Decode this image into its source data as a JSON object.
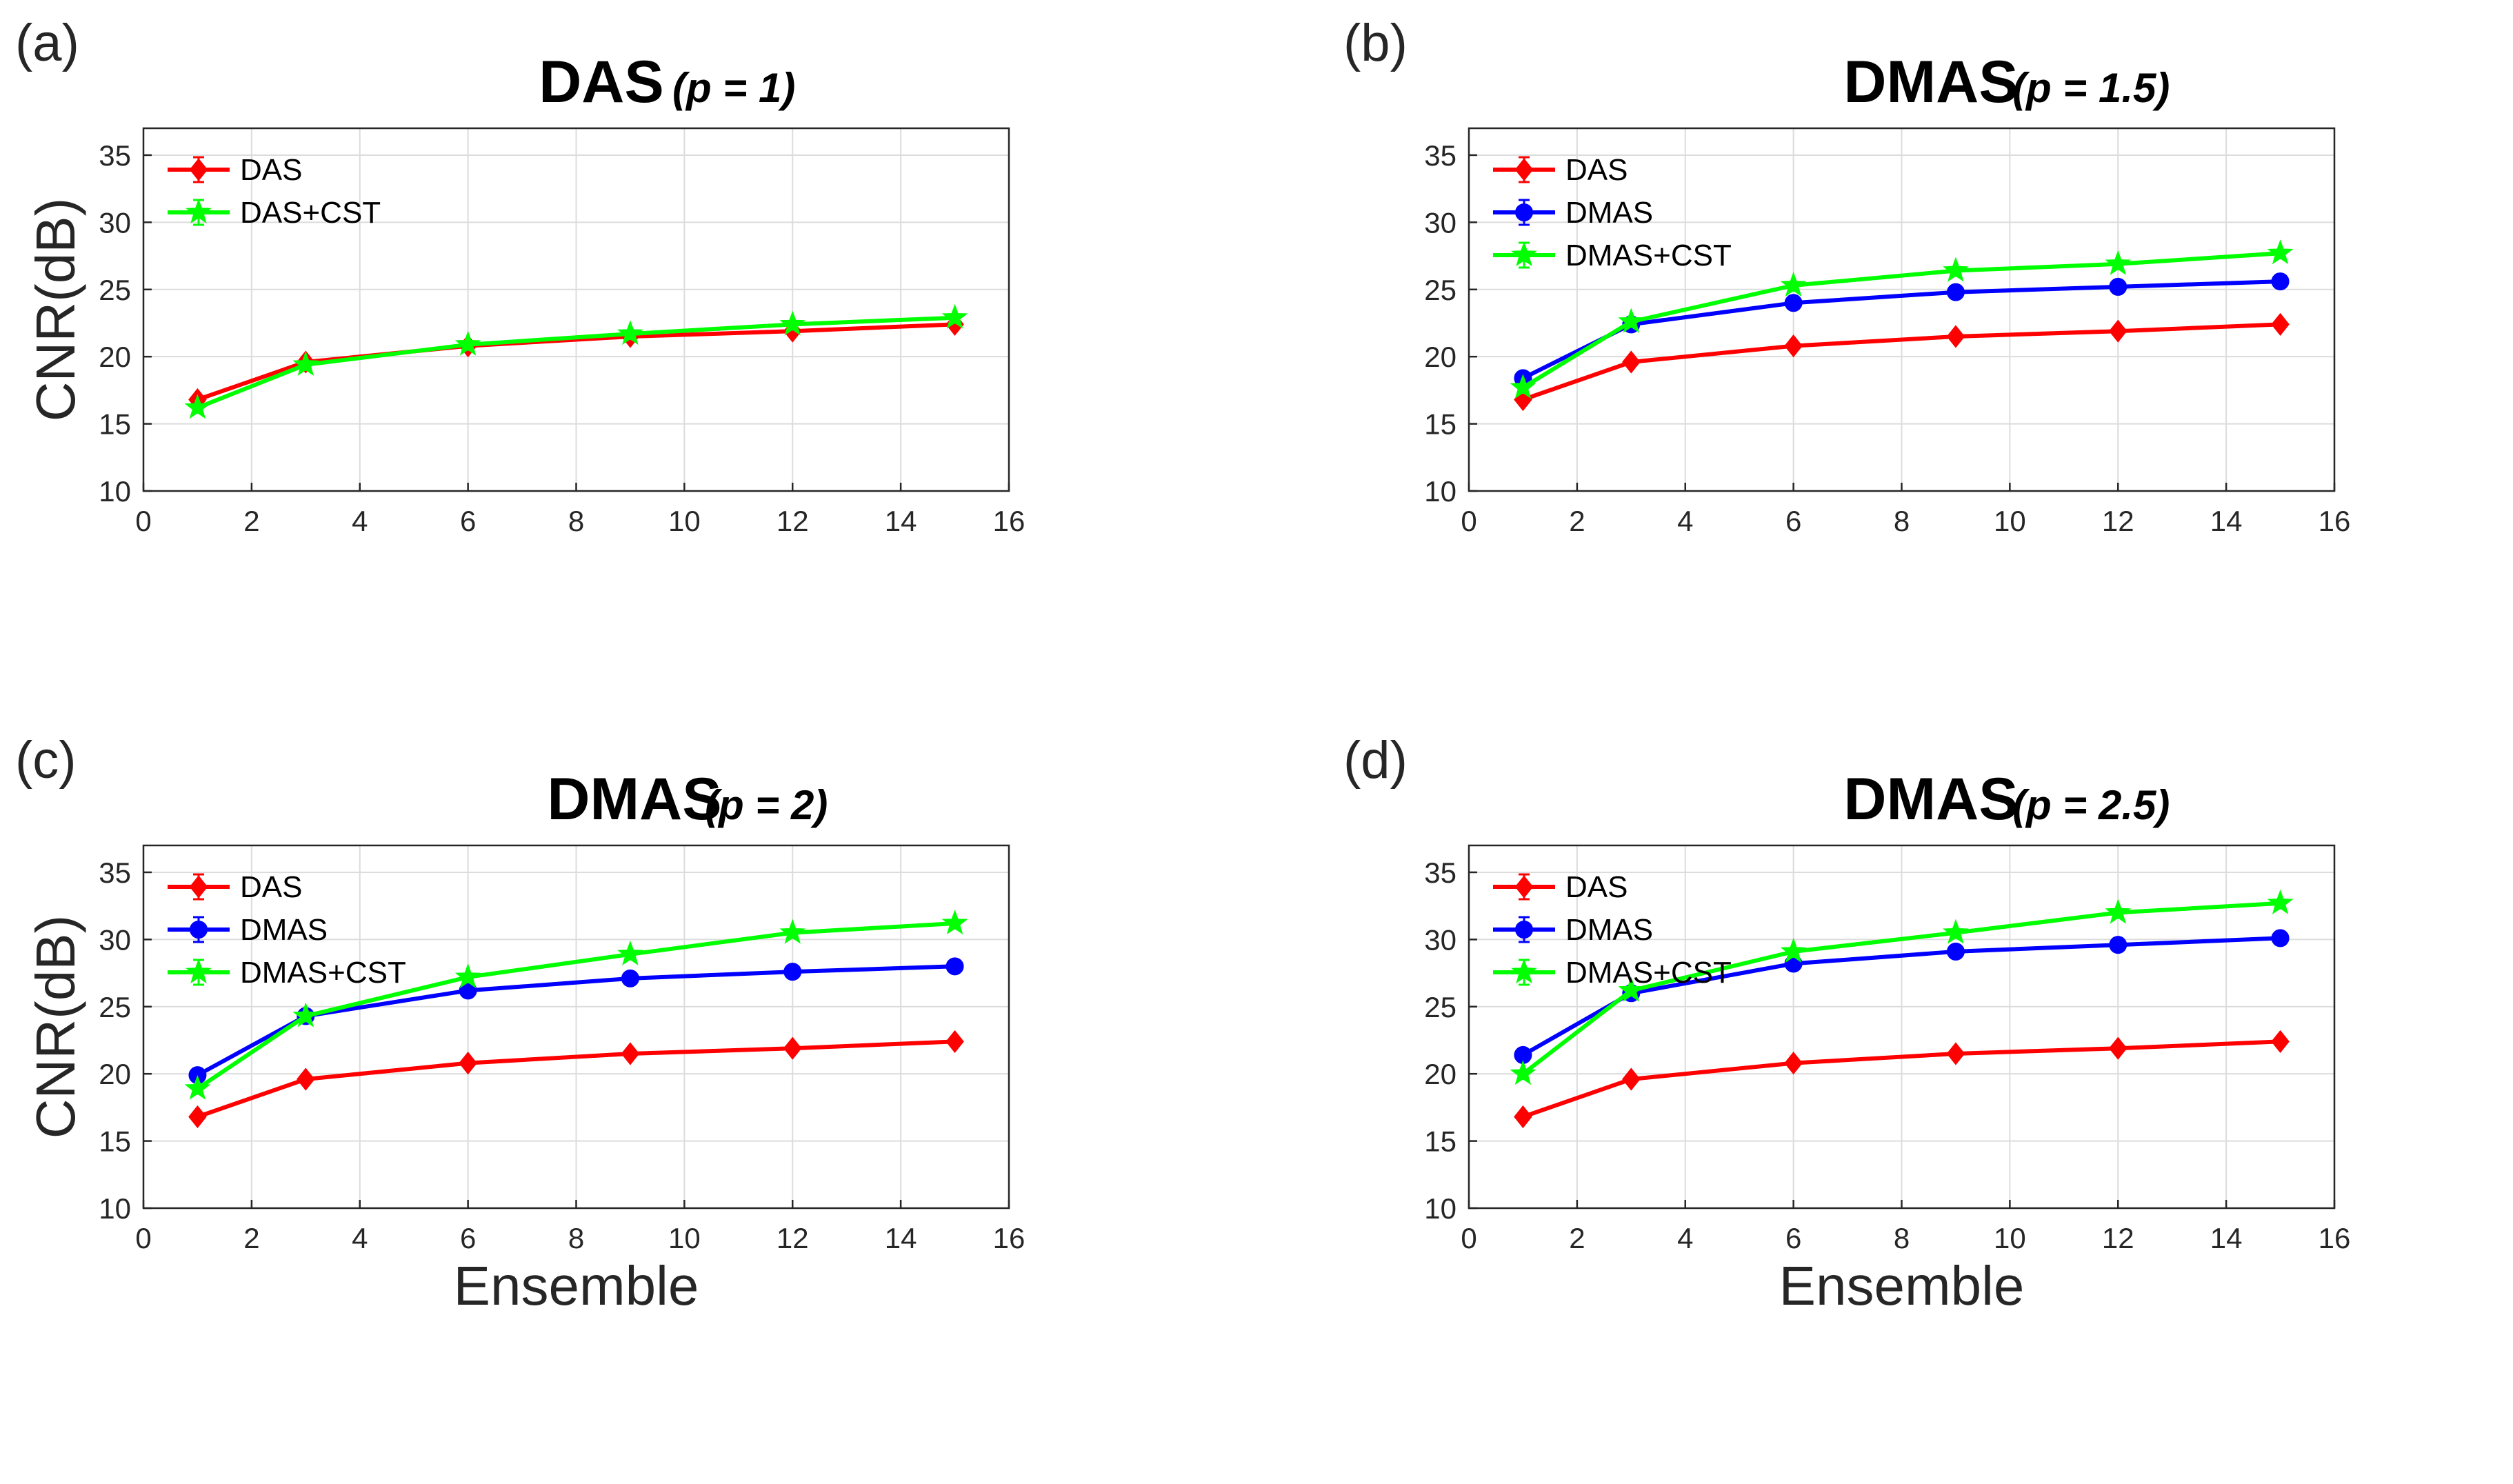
{
  "figure": {
    "x_label": "Ensemble",
    "y_label": "CNR(dB)"
  },
  "chart_data": [
    {
      "type": "line",
      "panel": "(a)",
      "title": "DAS",
      "subtitle": "(p = 1)",
      "xlabel": "",
      "ylabel": "CNR(dB)",
      "xlim": [
        0,
        16
      ],
      "ylim": [
        10,
        37
      ],
      "xticks": [
        0,
        2,
        4,
        6,
        8,
        10,
        12,
        14,
        16
      ],
      "yticks": [
        10,
        15,
        20,
        25,
        30,
        35
      ],
      "grid": true,
      "legend_position": "top-left",
      "x": [
        1,
        3,
        6,
        9,
        12,
        15
      ],
      "series": [
        {
          "name": "DAS",
          "color": "#ff0000",
          "marker": "diamond",
          "values": [
            16.8,
            19.6,
            20.8,
            21.5,
            21.9,
            22.4
          ]
        },
        {
          "name": "DAS+CST",
          "color": "#00ff00",
          "marker": "star",
          "values": [
            16.2,
            19.4,
            20.9,
            21.7,
            22.4,
            22.9
          ]
        }
      ]
    },
    {
      "type": "line",
      "panel": "(b)",
      "title": "DMAS",
      "subtitle": "(p = 1.5)",
      "xlabel": "",
      "ylabel": "",
      "xlim": [
        0,
        16
      ],
      "ylim": [
        10,
        37
      ],
      "xticks": [
        0,
        2,
        4,
        6,
        8,
        10,
        12,
        14,
        16
      ],
      "yticks": [
        10,
        15,
        20,
        25,
        30,
        35
      ],
      "grid": true,
      "legend_position": "top-left",
      "x": [
        1,
        3,
        6,
        9,
        12,
        15
      ],
      "series": [
        {
          "name": "DAS",
          "color": "#ff0000",
          "marker": "diamond",
          "values": [
            16.8,
            19.6,
            20.8,
            21.5,
            21.9,
            22.4
          ]
        },
        {
          "name": "DMAS",
          "color": "#0000ff",
          "marker": "circle",
          "values": [
            18.4,
            22.4,
            24.0,
            24.8,
            25.2,
            25.6
          ]
        },
        {
          "name": "DMAS+CST",
          "color": "#00ff00",
          "marker": "star",
          "values": [
            17.7,
            22.6,
            25.3,
            26.4,
            26.9,
            27.7
          ]
        }
      ]
    },
    {
      "type": "line",
      "panel": "(c)",
      "title": "DMAS",
      "subtitle": "(p = 2)",
      "xlabel": "Ensemble",
      "ylabel": "CNR(dB)",
      "xlim": [
        0,
        16
      ],
      "ylim": [
        10,
        37
      ],
      "xticks": [
        0,
        2,
        4,
        6,
        8,
        10,
        12,
        14,
        16
      ],
      "yticks": [
        10,
        15,
        20,
        25,
        30,
        35
      ],
      "grid": true,
      "legend_position": "top-left",
      "x": [
        1,
        3,
        6,
        9,
        12,
        15
      ],
      "series": [
        {
          "name": "DAS",
          "color": "#ff0000",
          "marker": "diamond",
          "values": [
            16.8,
            19.6,
            20.8,
            21.5,
            21.9,
            22.4
          ]
        },
        {
          "name": "DMAS",
          "color": "#0000ff",
          "marker": "circle",
          "values": [
            19.9,
            24.3,
            26.2,
            27.1,
            27.6,
            28.0
          ]
        },
        {
          "name": "DMAS+CST",
          "color": "#00ff00",
          "marker": "star",
          "values": [
            18.9,
            24.3,
            27.2,
            28.9,
            30.5,
            31.2
          ]
        }
      ]
    },
    {
      "type": "line",
      "panel": "(d)",
      "title": "DMAS",
      "subtitle": "(p = 2.5)",
      "xlabel": "Ensemble",
      "ylabel": "",
      "xlim": [
        0,
        16
      ],
      "ylim": [
        10,
        37
      ],
      "xticks": [
        0,
        2,
        4,
        6,
        8,
        10,
        12,
        14,
        16
      ],
      "yticks": [
        10,
        15,
        20,
        25,
        30,
        35
      ],
      "grid": true,
      "legend_position": "top-left",
      "x": [
        1,
        3,
        6,
        9,
        12,
        15
      ],
      "series": [
        {
          "name": "DAS",
          "color": "#ff0000",
          "marker": "diamond",
          "values": [
            16.8,
            19.6,
            20.8,
            21.5,
            21.9,
            22.4
          ]
        },
        {
          "name": "DMAS",
          "color": "#0000ff",
          "marker": "circle",
          "values": [
            21.4,
            26.0,
            28.2,
            29.1,
            29.6,
            30.1
          ]
        },
        {
          "name": "DMAS+CST",
          "color": "#00ff00",
          "marker": "star",
          "values": [
            20.0,
            26.2,
            29.1,
            30.5,
            32.0,
            32.7
          ]
        }
      ]
    }
  ]
}
